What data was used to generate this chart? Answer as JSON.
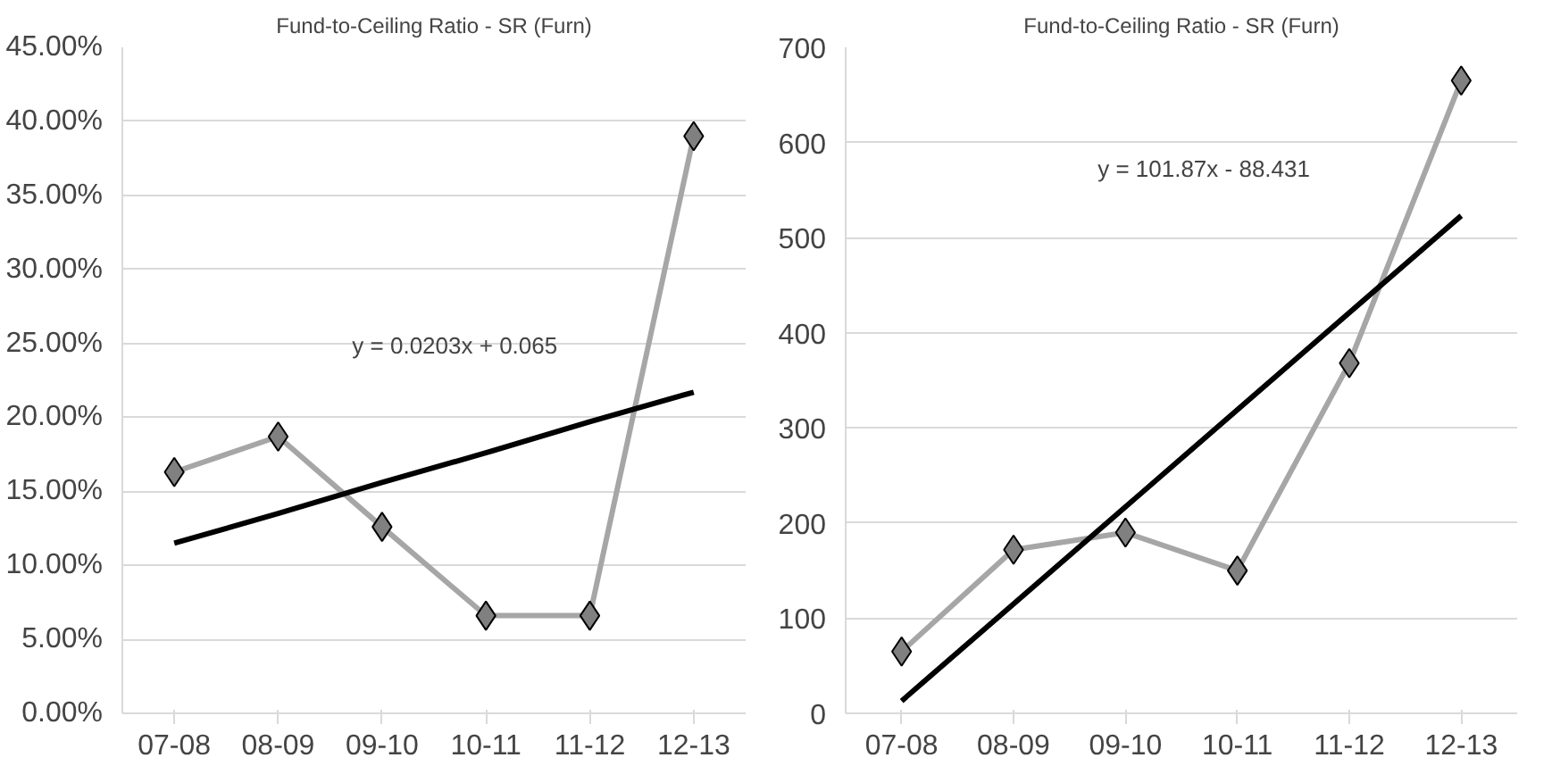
{
  "chart_data": [
    {
      "type": "line",
      "title": "Fund-to-Ceiling Ratio - SR (Furn)",
      "categories": [
        "07-08",
        "08-09",
        "09-10",
        "10-11",
        "11-12",
        "12-13"
      ],
      "series": [
        {
          "color": "#a6a6a6",
          "marker": "diamond",
          "values": [
            0.163,
            0.187,
            0.126,
            0.066,
            0.066,
            0.39
          ]
        },
        {
          "color": "#000000",
          "marker": "none",
          "values": [
            0.115,
            0.135,
            0.156,
            0.176,
            0.197,
            0.217
          ]
        }
      ],
      "ylim": [
        0,
        0.45
      ],
      "yticks": [
        {
          "value": 0,
          "label": "0.00%"
        },
        {
          "value": 0.05,
          "label": "5.00%"
        },
        {
          "value": 0.1,
          "label": "10.00%"
        },
        {
          "value": 0.15,
          "label": "15.00%"
        },
        {
          "value": 0.2,
          "label": "20.00%"
        },
        {
          "value": 0.25,
          "label": "25.00%"
        },
        {
          "value": 0.3,
          "label": "30.00%"
        },
        {
          "value": 0.35,
          "label": "35.00%"
        },
        {
          "value": 0.4,
          "label": "40.00%"
        },
        {
          "value": 0.45,
          "label": "45.00%"
        }
      ],
      "grid": "y",
      "annotations": [
        "y = 0.0203x + 0.065"
      ]
    },
    {
      "type": "line",
      "title": "Fund-to-Ceiling Ratio - SR (Furn)",
      "categories": [
        "07-08",
        "08-09",
        "09-10",
        "10-11",
        "11-12",
        "12-13"
      ],
      "series": [
        {
          "color": "#a6a6a6",
          "marker": "diamond",
          "values": [
            65,
            172,
            190,
            150,
            368,
            665
          ]
        },
        {
          "color": "#000000",
          "marker": "none",
          "values": [
            13,
            115,
            217,
            319,
            421,
            523
          ]
        }
      ],
      "ylim": [
        0,
        700
      ],
      "yticks": [
        0,
        100,
        200,
        300,
        400,
        500,
        600,
        700
      ],
      "grid": "y",
      "annotations": [
        "y = 101.87x - 88.431"
      ]
    }
  ]
}
